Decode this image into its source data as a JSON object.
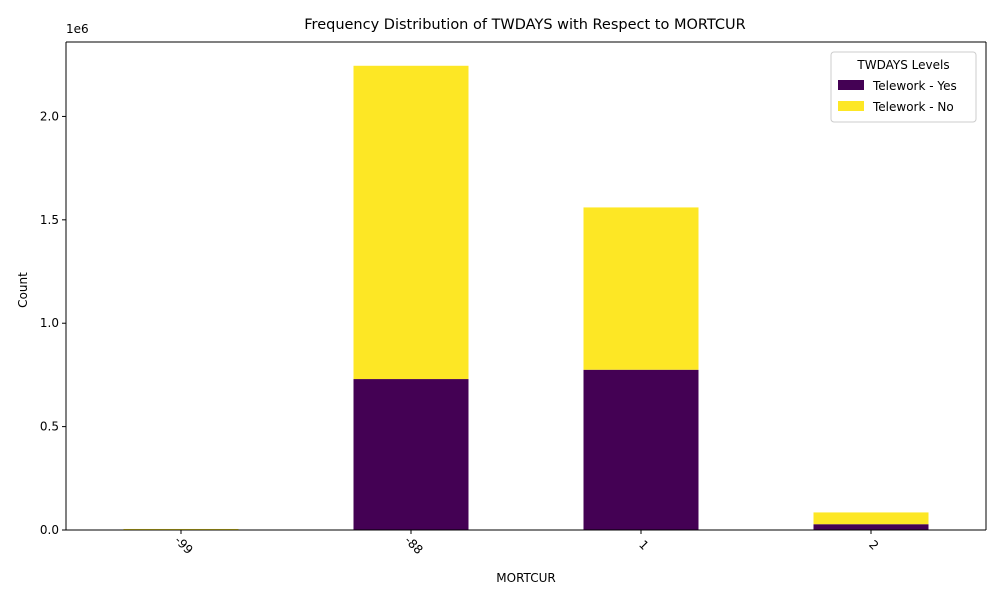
{
  "chart_data": {
    "type": "bar",
    "stacked": true,
    "title": "Frequency Distribution of TWDAYS with Respect to MORTCUR",
    "xlabel": "MORTCUR",
    "ylabel": "Count",
    "y_offset_label": "1e6",
    "categories": [
      "-99",
      "-88",
      "1",
      "2"
    ],
    "series": [
      {
        "name": "Telework - Yes",
        "color": "#440154",
        "values": [
          1000,
          730000,
          775000,
          28000
        ]
      },
      {
        "name": "Telework - No",
        "color": "#fde725",
        "values": [
          4000,
          1515000,
          785000,
          57000
        ]
      }
    ],
    "ylim": [
      0,
      2360000
    ],
    "yticks": [
      0,
      500000,
      1000000,
      1500000,
      2000000
    ],
    "ytick_labels": [
      "0.0",
      "0.5",
      "1.0",
      "1.5",
      "2.0"
    ],
    "legend": {
      "title": "TWDAYS Levels",
      "position": "top-right"
    },
    "grid": false
  }
}
